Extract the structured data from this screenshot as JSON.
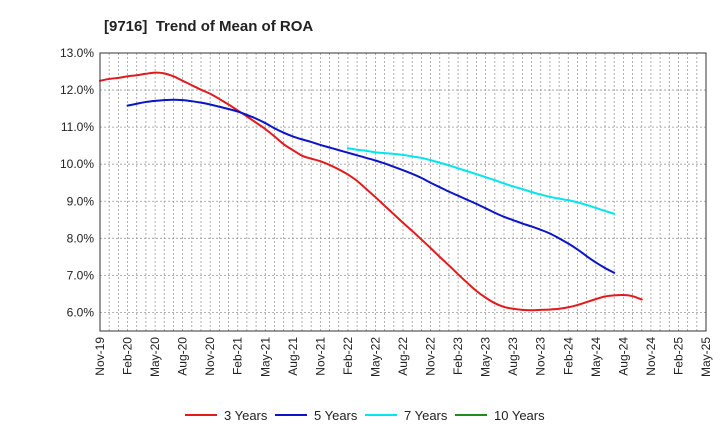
{
  "chart_data": {
    "type": "line",
    "title": "[9716]  Trend of Mean of ROA",
    "xlabel": "",
    "ylabel": "",
    "ylim": [
      5.5,
      13.0
    ],
    "y_ticks": [
      6.0,
      7.0,
      8.0,
      9.0,
      10.0,
      11.0,
      12.0,
      13.0
    ],
    "y_tick_labels": [
      "6.0%",
      "7.0%",
      "8.0%",
      "9.0%",
      "10.0%",
      "11.0%",
      "12.0%",
      "13.0%"
    ],
    "x_tick_labels": [
      "Nov-19",
      "Feb-20",
      "May-20",
      "Aug-20",
      "Nov-20",
      "Feb-21",
      "May-21",
      "Aug-21",
      "Nov-21",
      "Feb-22",
      "May-22",
      "Aug-22",
      "Nov-22",
      "Feb-23",
      "May-23",
      "Aug-23",
      "Nov-23",
      "Feb-24",
      "May-24",
      "Aug-24",
      "Nov-24",
      "Feb-25",
      "May-25"
    ],
    "x_start": "Nov-19",
    "x_step_months": 1,
    "grid": true,
    "series": [
      {
        "name": "3 Years",
        "color": "#e31a1c",
        "start_index": 0,
        "values": [
          12.25,
          12.3,
          12.33,
          12.37,
          12.4,
          12.44,
          12.47,
          12.45,
          12.37,
          12.25,
          12.13,
          12.01,
          11.9,
          11.76,
          11.61,
          11.45,
          11.29,
          11.12,
          10.95,
          10.75,
          10.54,
          10.38,
          10.23,
          10.15,
          10.08,
          9.98,
          9.86,
          9.72,
          9.55,
          9.33,
          9.11,
          8.88,
          8.65,
          8.42,
          8.2,
          7.97,
          7.74,
          7.5,
          7.27,
          7.03,
          6.8,
          6.58,
          6.4,
          6.25,
          6.15,
          6.1,
          6.07,
          6.06,
          6.07,
          6.08,
          6.1,
          6.14,
          6.2,
          6.28,
          6.36,
          6.43,
          6.46,
          6.47,
          6.44,
          6.35
        ]
      },
      {
        "name": "5 Years",
        "color": "#0a14c8",
        "start_index": 3,
        "values": [
          11.58,
          11.63,
          11.68,
          11.71,
          11.73,
          11.74,
          11.73,
          11.7,
          11.66,
          11.61,
          11.55,
          11.49,
          11.42,
          11.33,
          11.23,
          11.11,
          10.97,
          10.85,
          10.75,
          10.67,
          10.6,
          10.52,
          10.45,
          10.38,
          10.31,
          10.24,
          10.17,
          10.1,
          10.02,
          9.93,
          9.84,
          9.74,
          9.63,
          9.5,
          9.38,
          9.26,
          9.15,
          9.04,
          8.93,
          8.81,
          8.69,
          8.58,
          8.49,
          8.4,
          8.32,
          8.23,
          8.13,
          8.0,
          7.86,
          7.7,
          7.52,
          7.35,
          7.2,
          7.07
        ]
      },
      {
        "name": "7 Years",
        "color": "#00e5ee",
        "start_index": 27,
        "values": [
          10.43,
          10.39,
          10.36,
          10.32,
          10.3,
          10.28,
          10.25,
          10.21,
          10.17,
          10.11,
          10.04,
          9.97,
          9.89,
          9.81,
          9.73,
          9.65,
          9.57,
          9.48,
          9.4,
          9.33,
          9.25,
          9.18,
          9.12,
          9.07,
          9.03,
          8.97,
          8.9,
          8.82,
          8.74,
          8.66
        ]
      },
      {
        "name": "10 Years",
        "color": "#1e8c1e",
        "start_index": 0,
        "values": []
      }
    ]
  }
}
